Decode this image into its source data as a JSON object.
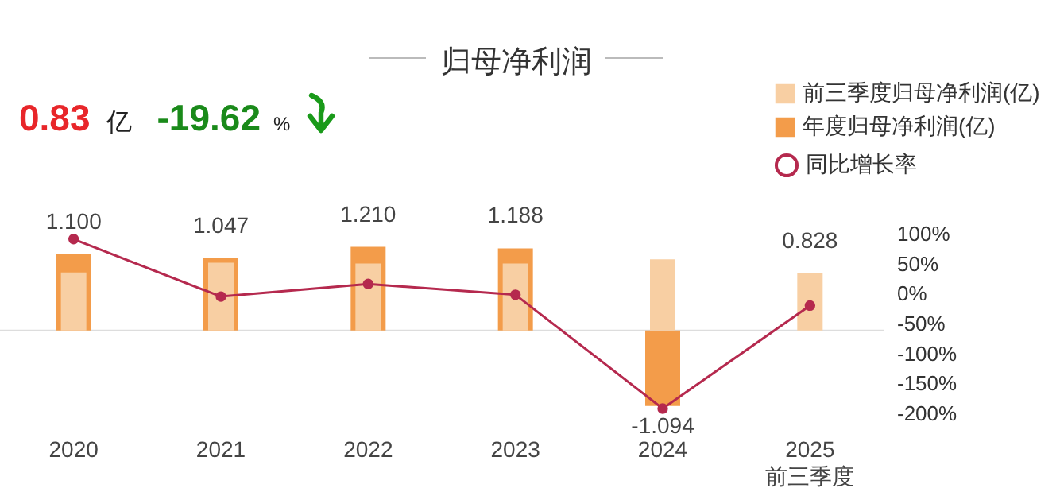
{
  "chart_data": {
    "type": "bar",
    "title": "归母净利润",
    "categories": [
      "2020",
      "2021",
      "2022",
      "2023",
      "2024",
      "2025\n前三季度"
    ],
    "series": [
      {
        "name": "前三季度归母净利润(亿)",
        "color": "#f8cfa3",
        "values": [
          0.84,
          0.98,
          0.97,
          0.97,
          1.03,
          0.828
        ],
        "value_labels": [
          null,
          null,
          null,
          null,
          null,
          "0.828"
        ]
      },
      {
        "name": "年度归母净利润(亿)",
        "color": "#f39c4a",
        "values": [
          1.1,
          1.047,
          1.21,
          1.188,
          -1.094,
          null
        ],
        "value_labels": [
          "1.100",
          "1.047",
          "1.210",
          "1.188",
          "-1.094",
          null
        ]
      },
      {
        "name": "同比增长率",
        "type": "line",
        "axis": "y2",
        "color": "#b5294e",
        "values": [
          91,
          -5,
          16,
          -2,
          -192,
          -20
        ]
      }
    ],
    "marker": "circle",
    "y2lim": [
      -200,
      100
    ],
    "y2ticks": [
      {
        "value": 100,
        "label": "100%"
      },
      {
        "value": 50,
        "label": "50%"
      },
      {
        "value": 0,
        "label": "0%"
      },
      {
        "value": -50,
        "label": "-50%"
      },
      {
        "value": -100,
        "label": "-100%"
      },
      {
        "value": -150,
        "label": "-150%"
      },
      {
        "value": -200,
        "label": "-200%"
      }
    ],
    "legend": "top right",
    "ref_lines": [
      {
        "axis": "y",
        "value": 0,
        "color": "#dddddd"
      }
    ],
    "annotations": [
      "0.83",
      "亿",
      "-19.62",
      "%"
    ]
  }
}
